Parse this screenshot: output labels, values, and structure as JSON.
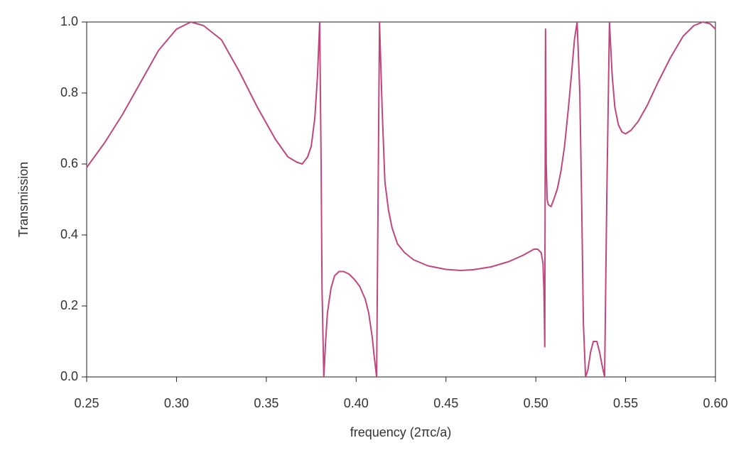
{
  "chart_data": {
    "type": "line",
    "xlabel": "frequency (2πc/a)",
    "ylabel": "Transmission",
    "color": "#c0467e",
    "x": [
      0.25,
      0.26,
      0.27,
      0.28,
      0.29,
      0.3,
      0.308,
      0.315,
      0.325,
      0.335,
      0.345,
      0.355,
      0.362,
      0.367,
      0.37,
      0.373,
      0.375,
      0.377,
      0.3785,
      0.3797,
      0.3805,
      0.381,
      0.382,
      0.383,
      0.384,
      0.386,
      0.388,
      0.3905,
      0.393,
      0.396,
      0.399,
      0.402,
      0.405,
      0.407,
      0.409,
      0.41,
      0.4114,
      0.4122,
      0.413,
      0.4145,
      0.416,
      0.418,
      0.42,
      0.423,
      0.427,
      0.432,
      0.44,
      0.45,
      0.458,
      0.465,
      0.475,
      0.485,
      0.493,
      0.499,
      0.501,
      0.503,
      0.504,
      0.5045,
      0.505,
      0.5054,
      0.5058,
      0.5063,
      0.507,
      0.5085,
      0.51,
      0.512,
      0.514,
      0.516,
      0.518,
      0.52,
      0.5215,
      0.523,
      0.5245,
      0.5255,
      0.5265,
      0.5277,
      0.529,
      0.5305,
      0.532,
      0.534,
      0.5355,
      0.537,
      0.5383,
      0.5395,
      0.541,
      0.5425,
      0.544,
      0.546,
      0.548,
      0.55,
      0.553,
      0.557,
      0.562,
      0.568,
      0.575,
      0.582,
      0.588,
      0.593,
      0.597,
      0.6
    ],
    "values": [
      0.59,
      0.66,
      0.74,
      0.83,
      0.92,
      0.98,
      1.0,
      0.99,
      0.95,
      0.86,
      0.76,
      0.67,
      0.62,
      0.605,
      0.6,
      0.62,
      0.65,
      0.73,
      0.85,
      1.0,
      0.6,
      0.25,
      0.0,
      0.1,
      0.18,
      0.25,
      0.285,
      0.297,
      0.297,
      0.29,
      0.275,
      0.255,
      0.22,
      0.18,
      0.11,
      0.06,
      0.0,
      0.5,
      1.0,
      0.75,
      0.55,
      0.47,
      0.42,
      0.375,
      0.35,
      0.33,
      0.313,
      0.303,
      0.3,
      0.302,
      0.31,
      0.325,
      0.343,
      0.36,
      0.36,
      0.35,
      0.32,
      0.25,
      0.085,
      0.98,
      0.6,
      0.5,
      0.485,
      0.48,
      0.5,
      0.53,
      0.58,
      0.65,
      0.75,
      0.86,
      0.95,
      1.0,
      0.8,
      0.5,
      0.15,
      0.0,
      0.02,
      0.07,
      0.1,
      0.1,
      0.07,
      0.03,
      0.0,
      0.5,
      1.0,
      0.85,
      0.76,
      0.71,
      0.69,
      0.685,
      0.695,
      0.72,
      0.765,
      0.83,
      0.9,
      0.96,
      0.99,
      1.0,
      0.995,
      0.98
    ],
    "xlim": [
      0.25,
      0.6
    ],
    "xticks": [
      0.25,
      {
        "value": 0.3,
        "label": "0.30"
      },
      0.35,
      {
        "value": 0.4,
        "label": "0.40"
      },
      0.45,
      {
        "value": 0.5,
        "label": "0.50"
      },
      0.55,
      {
        "value": 0.6,
        "label": "0.60"
      }
    ],
    "ylim": [
      0.0,
      1.0
    ],
    "yticks": [
      {
        "value": 0.0,
        "label": "0.0"
      },
      0.2,
      0.4,
      0.6,
      0.8,
      {
        "value": 1.0,
        "label": "1.0"
      }
    ]
  }
}
